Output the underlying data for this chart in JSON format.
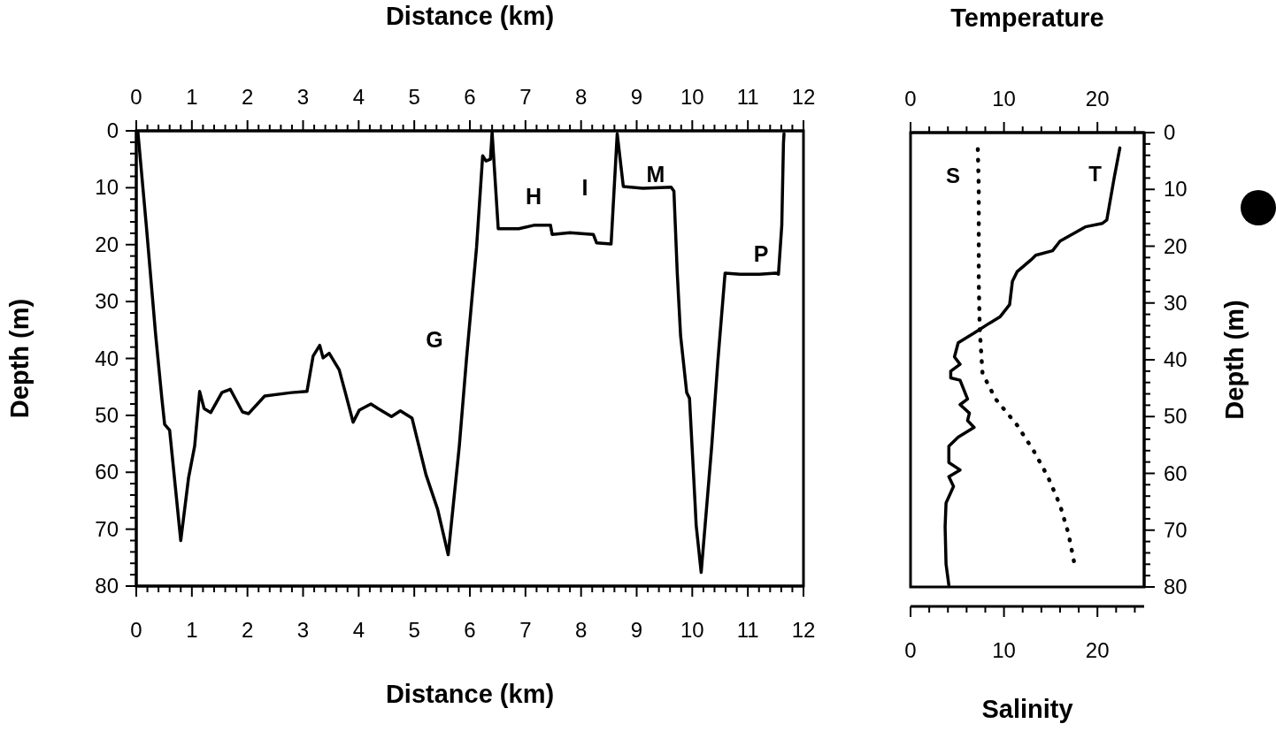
{
  "chart_data": [
    {
      "type": "line",
      "xlabel": "Distance (km)",
      "x2label": "Distance (km)",
      "ylabel": "Depth (m)",
      "xlim": [
        0,
        12
      ],
      "x2lim": [
        0,
        12
      ],
      "ylim": [
        80,
        0
      ],
      "xticks": [
        0,
        {
          "value": 0.2,
          "label": null
        },
        {
          "value": 0.4,
          "label": null
        },
        {
          "value": 0.6,
          "label": null
        },
        {
          "value": 0.8,
          "label": null
        },
        1,
        {
          "value": 1.2,
          "label": null
        },
        {
          "value": 1.4,
          "label": null
        },
        {
          "value": 1.6,
          "label": null
        },
        {
          "value": 1.8,
          "label": null
        },
        2,
        {
          "value": 2.2,
          "label": null
        },
        {
          "value": 2.4,
          "label": null
        },
        {
          "value": 2.6,
          "label": null
        },
        {
          "value": 2.8,
          "label": null
        },
        3,
        {
          "value": 3.2,
          "label": null
        },
        {
          "value": 3.4,
          "label": null
        },
        {
          "value": 3.6,
          "label": null
        },
        {
          "value": 3.8,
          "label": null
        },
        4,
        {
          "value": 4.2,
          "label": null
        },
        {
          "value": 4.4,
          "label": null
        },
        {
          "value": 4.6,
          "label": null
        },
        {
          "value": 4.8,
          "label": null
        },
        5,
        {
          "value": 5.2,
          "label": null
        },
        {
          "value": 5.4,
          "label": null
        },
        {
          "value": 5.6,
          "label": null
        },
        {
          "value": 5.8,
          "label": null
        },
        6,
        {
          "value": 6.2,
          "label": null
        },
        {
          "value": 6.4,
          "label": null
        },
        {
          "value": 6.6,
          "label": null
        },
        {
          "value": 6.8,
          "label": null
        },
        7,
        {
          "value": 7.2,
          "label": null
        },
        {
          "value": 7.4,
          "label": null
        },
        {
          "value": 7.6,
          "label": null
        },
        {
          "value": 7.8,
          "label": null
        },
        8,
        {
          "value": 8.2,
          "label": null
        },
        {
          "value": 8.4,
          "label": null
        },
        {
          "value": 8.6,
          "label": null
        },
        {
          "value": 8.8,
          "label": null
        },
        9,
        {
          "value": 9.2,
          "label": null
        },
        {
          "value": 9.4,
          "label": null
        },
        {
          "value": 9.6,
          "label": null
        },
        {
          "value": 9.8,
          "label": null
        },
        10,
        {
          "value": 10.2,
          "label": null
        },
        {
          "value": 10.4,
          "label": null
        },
        {
          "value": 10.6,
          "label": null
        },
        {
          "value": 10.8,
          "label": null
        },
        11,
        {
          "value": 11.2,
          "label": null
        },
        {
          "value": 11.4,
          "label": null
        },
        {
          "value": 11.6,
          "label": null
        },
        {
          "value": 11.8,
          "label": null
        },
        12
      ],
      "x2ticks": [
        0,
        {
          "value": 0.2,
          "label": null
        },
        {
          "value": 0.4,
          "label": null
        },
        {
          "value": 0.6,
          "label": null
        },
        {
          "value": 0.8,
          "label": null
        },
        1,
        {
          "value": 1.2,
          "label": null
        },
        {
          "value": 1.4,
          "label": null
        },
        {
          "value": 1.6,
          "label": null
        },
        {
          "value": 1.8,
          "label": null
        },
        2,
        {
          "value": 2.2,
          "label": null
        },
        {
          "value": 2.4,
          "label": null
        },
        {
          "value": 2.6,
          "label": null
        },
        {
          "value": 2.8,
          "label": null
        },
        3,
        {
          "value": 3.2,
          "label": null
        },
        {
          "value": 3.4,
          "label": null
        },
        {
          "value": 3.6,
          "label": null
        },
        {
          "value": 3.8,
          "label": null
        },
        4,
        {
          "value": 4.2,
          "label": null
        },
        {
          "value": 4.4,
          "label": null
        },
        {
          "value": 4.6,
          "label": null
        },
        {
          "value": 4.8,
          "label": null
        },
        5,
        {
          "value": 5.2,
          "label": null
        },
        {
          "value": 5.4,
          "label": null
        },
        {
          "value": 5.6,
          "label": null
        },
        {
          "value": 5.8,
          "label": null
        },
        6,
        {
          "value": 6.2,
          "label": null
        },
        {
          "value": 6.4,
          "label": null
        },
        {
          "value": 6.6,
          "label": null
        },
        {
          "value": 6.8,
          "label": null
        },
        7,
        {
          "value": 7.2,
          "label": null
        },
        {
          "value": 7.4,
          "label": null
        },
        {
          "value": 7.6,
          "label": null
        },
        {
          "value": 7.8,
          "label": null
        },
        8,
        {
          "value": 8.2,
          "label": null
        },
        {
          "value": 8.4,
          "label": null
        },
        {
          "value": 8.6,
          "label": null
        },
        {
          "value": 8.8,
          "label": null
        },
        9,
        {
          "value": 9.2,
          "label": null
        },
        {
          "value": 9.4,
          "label": null
        },
        {
          "value": 9.6,
          "label": null
        },
        {
          "value": 9.8,
          "label": null
        },
        10,
        {
          "value": 10.2,
          "label": null
        },
        {
          "value": 10.4,
          "label": null
        },
        {
          "value": 10.6,
          "label": null
        },
        {
          "value": 10.8,
          "label": null
        },
        11,
        {
          "value": 11.2,
          "label": null
        },
        {
          "value": 11.4,
          "label": null
        },
        {
          "value": 11.6,
          "label": null
        },
        {
          "value": 11.8,
          "label": null
        },
        12
      ],
      "yticks": [
        0,
        {
          "value": 2,
          "label": null
        },
        {
          "value": 4,
          "label": null
        },
        {
          "value": 6,
          "label": null
        },
        {
          "value": 8,
          "label": null
        },
        10,
        {
          "value": 12,
          "label": null
        },
        {
          "value": 14,
          "label": null
        },
        {
          "value": 16,
          "label": null
        },
        {
          "value": 18,
          "label": null
        },
        20,
        {
          "value": 22,
          "label": null
        },
        {
          "value": 24,
          "label": null
        },
        {
          "value": 26,
          "label": null
        },
        {
          "value": 28,
          "label": null
        },
        30,
        {
          "value": 32,
          "label": null
        },
        {
          "value": 34,
          "label": null
        },
        {
          "value": 36,
          "label": null
        },
        {
          "value": 38,
          "label": null
        },
        40,
        {
          "value": 42,
          "label": null
        },
        {
          "value": 44,
          "label": null
        },
        {
          "value": 46,
          "label": null
        },
        {
          "value": 48,
          "label": null
        },
        50,
        {
          "value": 52,
          "label": null
        },
        {
          "value": 54,
          "label": null
        },
        {
          "value": 56,
          "label": null
        },
        {
          "value": 58,
          "label": null
        },
        60,
        {
          "value": 62,
          "label": null
        },
        {
          "value": 64,
          "label": null
        },
        {
          "value": 66,
          "label": null
        },
        {
          "value": 68,
          "label": null
        },
        70,
        {
          "value": 72,
          "label": null
        },
        {
          "value": 74,
          "label": null
        },
        {
          "value": 76,
          "label": null
        },
        {
          "value": 78,
          "label": null
        },
        80
      ],
      "line_style": "solid",
      "series": [
        {
          "color": "#000000",
          "x": [
            0.03,
            0.18,
            0.35,
            0.46,
            0.51,
            0.6,
            0.8,
            0.94,
            1.05,
            1.14,
            1.22,
            1.34,
            1.54,
            1.69,
            1.91,
            2.02,
            2.31,
            2.79,
            3.07,
            3.18,
            3.3,
            3.36,
            3.47,
            3.65,
            3.76,
            3.9,
            4.01,
            4.22,
            4.35,
            4.59,
            4.75,
            4.96,
            5.21,
            5.42,
            5.61,
            5.81,
            5.94,
            6.12,
            6.23,
            6.29,
            6.37,
            6.4,
            6.51,
            6.88,
            7.15,
            7.45,
            7.48,
            7.8,
            8.22,
            8.28,
            8.54,
            8.65,
            8.76,
            9.11,
            9.62,
            9.67,
            9.73,
            9.79,
            9.9,
            9.95,
            10.05,
            10.07,
            10.16,
            10.35,
            10.46,
            10.59,
            10.86,
            11.21,
            11.5,
            11.55,
            11.61,
            11.64,
            11.65
          ],
          "values": [
            0.3,
            16.6,
            36,
            47,
            51.6,
            52.6,
            72,
            61,
            55.4,
            45.8,
            48.8,
            49.5,
            46,
            45.4,
            49.4,
            49.7,
            46.6,
            46,
            45.8,
            39.6,
            37.7,
            39.9,
            39.1,
            42,
            46,
            51.2,
            49.1,
            48,
            48.8,
            50.2,
            49.2,
            50.5,
            60.4,
            66.5,
            74.5,
            55.4,
            40,
            20.5,
            4.4,
            5.3,
            5,
            0.3,
            17.2,
            17.2,
            16.6,
            16.6,
            18.2,
            17.9,
            18.2,
            19.7,
            19.9,
            0.5,
            9.8,
            10.1,
            9.9,
            10.6,
            25,
            36,
            46,
            47,
            65.4,
            69.3,
            77.6,
            55.4,
            40.5,
            25,
            25.2,
            25.2,
            25,
            25.2,
            16.6,
            2.2,
            0.5
          ]
        }
      ],
      "annotations": [
        "G",
        "H",
        "I",
        "M",
        "P"
      ]
    },
    {
      "type": "line",
      "xlabel": "Salinity",
      "x2label": "Temperature",
      "ylabel": "Depth (m)",
      "xlim": [
        0,
        25
      ],
      "x2lim": [
        0,
        25
      ],
      "ylim": [
        80,
        0
      ],
      "xticks": [
        0,
        {
          "value": 2,
          "label": null
        },
        {
          "value": 4,
          "label": null
        },
        {
          "value": 6,
          "label": null
        },
        {
          "value": 8,
          "label": null
        },
        10,
        {
          "value": 12,
          "label": null
        },
        {
          "value": 14,
          "label": null
        },
        {
          "value": 16,
          "label": null
        },
        {
          "value": 18,
          "label": null
        },
        20,
        {
          "value": 22,
          "label": null
        },
        {
          "value": 24,
          "label": null
        }
      ],
      "x2ticks": [
        0,
        {
          "value": 2,
          "label": null
        },
        {
          "value": 4,
          "label": null
        },
        {
          "value": 6,
          "label": null
        },
        {
          "value": 8,
          "label": null
        },
        10,
        {
          "value": 12,
          "label": null
        },
        {
          "value": 14,
          "label": null
        },
        {
          "value": 16,
          "label": null
        },
        {
          "value": 18,
          "label": null
        },
        20,
        {
          "value": 22,
          "label": null
        },
        {
          "value": 24,
          "label": null
        }
      ],
      "yticks": [
        0,
        {
          "value": 2,
          "label": null
        },
        {
          "value": 4,
          "label": null
        },
        {
          "value": 6,
          "label": null
        },
        {
          "value": 8,
          "label": null
        },
        10,
        {
          "value": 12,
          "label": null
        },
        {
          "value": 14,
          "label": null
        },
        {
          "value": 16,
          "label": null
        },
        {
          "value": 18,
          "label": null
        },
        20,
        {
          "value": 22,
          "label": null
        },
        {
          "value": 24,
          "label": null
        },
        {
          "value": 26,
          "label": null
        },
        {
          "value": 28,
          "label": null
        },
        30,
        {
          "value": 32,
          "label": null
        },
        {
          "value": 34,
          "label": null
        },
        {
          "value": 36,
          "label": null
        },
        {
          "value": 38,
          "label": null
        },
        40,
        {
          "value": 42,
          "label": null
        },
        {
          "value": 44,
          "label": null
        },
        {
          "value": 46,
          "label": null
        },
        {
          "value": 48,
          "label": null
        },
        50,
        {
          "value": 52,
          "label": null
        },
        {
          "value": 54,
          "label": null
        },
        {
          "value": 56,
          "label": null
        },
        {
          "value": 58,
          "label": null
        },
        60,
        {
          "value": 62,
          "label": null
        },
        {
          "value": 64,
          "label": null
        },
        {
          "value": 66,
          "label": null
        },
        {
          "value": 68,
          "label": null
        },
        70,
        {
          "value": 72,
          "label": null
        },
        {
          "value": 74,
          "label": null
        },
        {
          "value": 76,
          "label": null
        },
        {
          "value": 78,
          "label": null
        },
        80
      ],
      "series": [
        {
          "name": "T",
          "color": "#000000",
          "axis": "x2",
          "line_style": "solid",
          "x": [
            22.4,
            21.8,
            21.0,
            20.5,
            18.7,
            16.0,
            15.2,
            13.4,
            12.9,
            11.4,
            10.9,
            10.6,
            9.6,
            8.4,
            6.8,
            5.1,
            4.7,
            5.3,
            4.3,
            4.3,
            5.3,
            6.1,
            5.3,
            6.3,
            6.1,
            6.8,
            5.1,
            4.1,
            4.1,
            5.3,
            4.1,
            4.6,
            3.8,
            3.7,
            3.8,
            4.1
          ],
          "values": [
            2.7,
            7.9,
            15.4,
            16,
            16.6,
            19.1,
            20.8,
            21.6,
            22.4,
            24.5,
            26.2,
            30.3,
            32.4,
            33.6,
            35.3,
            37,
            39.5,
            40.8,
            42,
            43.2,
            43.6,
            46.9,
            47.9,
            49.4,
            50.7,
            51.9,
            53.6,
            55.2,
            58.1,
            59.4,
            60.6,
            62.3,
            65.2,
            69.4,
            76,
            79.7
          ]
        },
        {
          "name": "S",
          "color": "#000000",
          "line_style": "dotted",
          "x": [
            7.2,
            7.3,
            7.3,
            7.3,
            7.4,
            7.7,
            9.1,
            11.4,
            13.2,
            14.7,
            16,
            16.9,
            17.5
          ],
          "values": [
            2.9,
            9.6,
            17.9,
            26.2,
            34.5,
            42.4,
            46.9,
            51.5,
            56.1,
            60.6,
            65.6,
            70.6,
            75.6
          ]
        }
      ]
    }
  ]
}
